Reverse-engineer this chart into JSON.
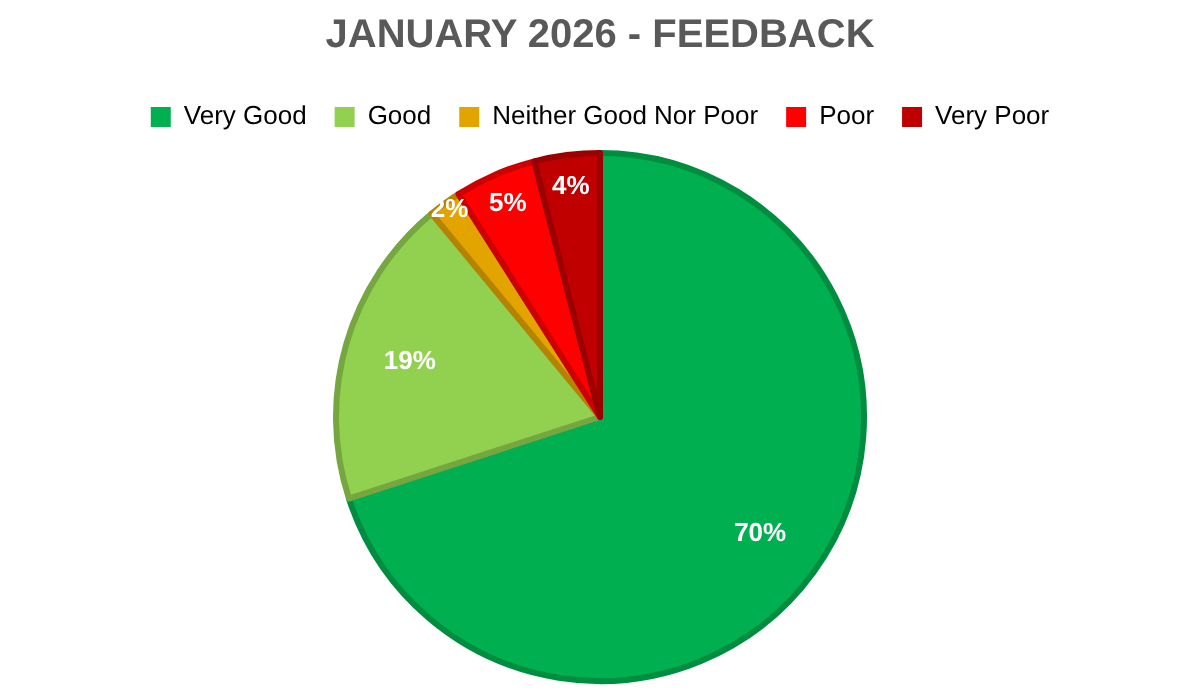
{
  "chart_data": {
    "type": "pie",
    "title": "JANUARY 2026 - FEEDBACK",
    "categories": [
      "Very Good",
      "Good",
      "Neither Good Nor Poor",
      "Poor",
      "Very Poor"
    ],
    "values": [
      70,
      19,
      2,
      5,
      4
    ],
    "colors": [
      "#00b050",
      "#92d050",
      "#e3a400",
      "#ff0000",
      "#c00000"
    ],
    "value_labels": [
      "70%",
      "19%",
      "2%",
      "5%",
      "4%"
    ],
    "legend": "top"
  }
}
